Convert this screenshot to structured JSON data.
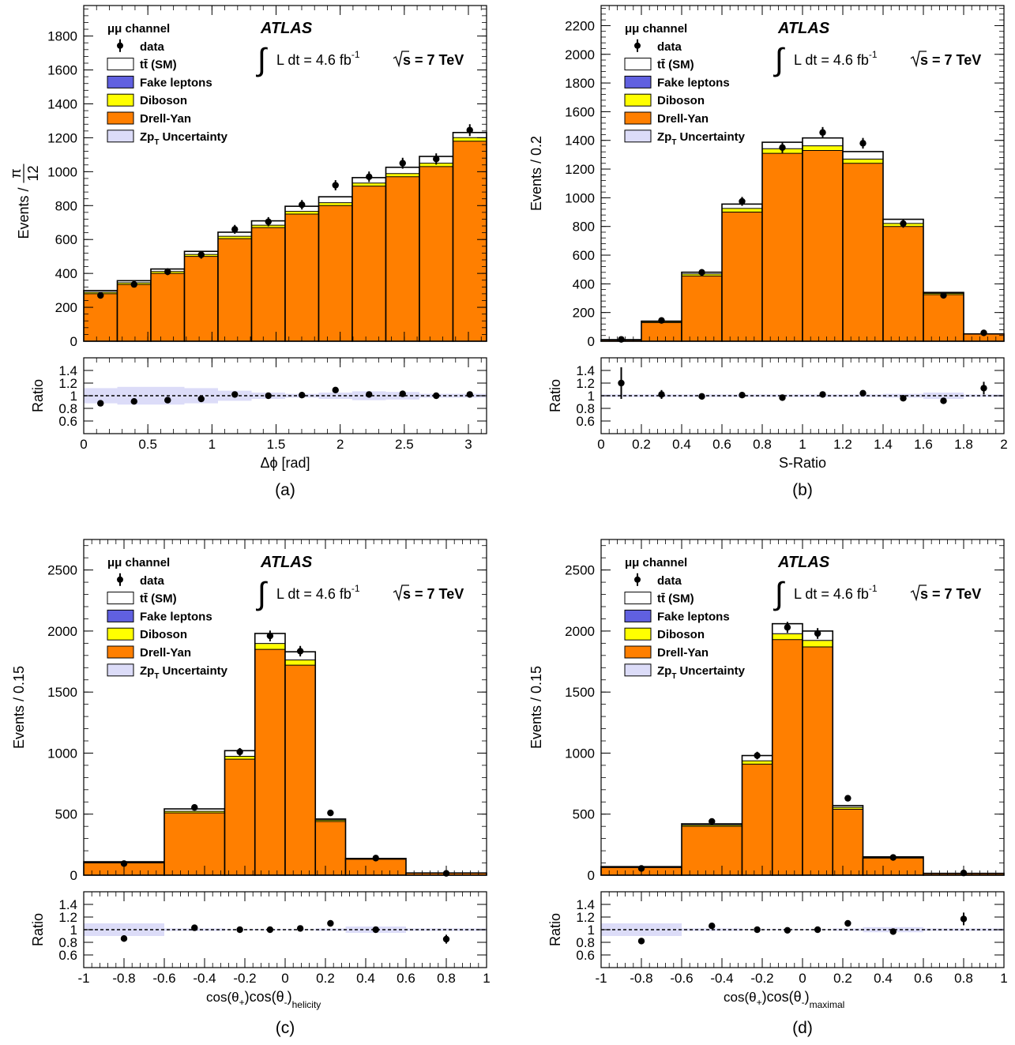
{
  "figure": {
    "experiment": "ATLAS",
    "luminosity": "L dt = 4.6 fb",
    "lumi_exponent": "-1",
    "energy": "s = 7 TeV",
    "ratio_ylabel": "Ratio",
    "legend": [
      {
        "label": "μμ channel",
        "key": "none"
      },
      {
        "label": "data",
        "key": "data"
      },
      {
        "label": "tt̄ (SM)",
        "key": "box",
        "color": "#ffffff"
      },
      {
        "label": "Fake leptons",
        "key": "box",
        "color": "#6060e0"
      },
      {
        "label": "Diboson",
        "key": "box",
        "color": "#ffff00"
      },
      {
        "label": "Drell-Yan",
        "key": "box",
        "color": "#ff7f00"
      },
      {
        "label": "Zp",
        "sub": "T",
        "label_tail": "Uncertainty",
        "key": "box",
        "color": "#dcdcf8"
      }
    ],
    "colors": {
      "dy": "#ff7f00",
      "diboson": "#ffff00",
      "fake": "#6060e0",
      "ttbar": "#ffffff",
      "uncertainty": "#dcdcf8"
    }
  },
  "chart_data": [
    {
      "type": "bar",
      "caption": "(a)",
      "ylabel": "Events / ",
      "ylabel_frac": [
        "π",
        "12"
      ],
      "xlabel": "Δϕ [rad]",
      "xlim": [
        0,
        3.1416
      ],
      "ylim": [
        0,
        1980
      ],
      "yticks": [
        0,
        200,
        400,
        600,
        800,
        1000,
        1200,
        1400,
        1600,
        1800
      ],
      "xticks": [
        0,
        0.5,
        1,
        1.5,
        2,
        2.5,
        3
      ],
      "xtick_labels": [
        "0",
        "0.5",
        "1",
        "1.5",
        "2",
        "2.5",
        "3"
      ],
      "ratio_ylim": [
        0.4,
        1.6
      ],
      "ratio_yticks": [
        0.6,
        0.8,
        1,
        1.2,
        1.4
      ],
      "ratio_ytick_labels": [
        "0.6",
        "0.8",
        "1",
        "1.2",
        "1.4"
      ],
      "bin_edges": [
        0,
        0.2618,
        0.5236,
        0.7854,
        1.0472,
        1.309,
        1.5708,
        1.8326,
        2.0944,
        2.3562,
        2.618,
        2.8798,
        3.1416
      ],
      "drell_yan": [
        280,
        335,
        400,
        500,
        605,
        670,
        750,
        800,
        915,
        970,
        1030,
        1180
      ],
      "diboson": [
        8,
        9,
        10,
        11,
        13,
        13,
        15,
        16,
        17,
        18,
        19,
        20
      ],
      "fake": [
        1,
        1,
        1,
        1,
        1,
        1,
        1,
        1,
        1,
        1,
        1,
        1
      ],
      "ttbar": [
        10,
        12,
        15,
        18,
        24,
        26,
        30,
        35,
        32,
        37,
        40,
        30
      ],
      "total": [
        299,
        357,
        426,
        530,
        643,
        710,
        796,
        852,
        965,
        1026,
        1090,
        1231
      ],
      "data": [
        270,
        335,
        410,
        510,
        660,
        705,
        805,
        920,
        970,
        1050,
        1075,
        1245
      ],
      "data_err": [
        16,
        18,
        20,
        23,
        26,
        27,
        28,
        30,
        31,
        32,
        33,
        35
      ],
      "ratio": [
        0.88,
        0.91,
        0.93,
        0.95,
        1.02,
        1.0,
        1.01,
        1.09,
        1.02,
        1.03,
        1.0,
        1.02
      ],
      "ratio_err": [
        0.02,
        0.02,
        0.02,
        0.02,
        0.02,
        0.02,
        0.02,
        0.02,
        0.02,
        0.02,
        0.02,
        0.02
      ],
      "unc_band": [
        0.12,
        0.14,
        0.14,
        0.12,
        0.08,
        0.05,
        0.03,
        0.05,
        0.07,
        0.06,
        0.03,
        0.03
      ]
    },
    {
      "type": "bar",
      "caption": "(b)",
      "ylabel": "Events / 0.2",
      "xlabel": "S-Ratio",
      "xlim": [
        0,
        2
      ],
      "ylim": [
        0,
        2340
      ],
      "yticks": [
        0,
        200,
        400,
        600,
        800,
        1000,
        1200,
        1400,
        1600,
        1800,
        2000,
        2200
      ],
      "xticks": [
        0,
        0.2,
        0.4,
        0.6,
        0.8,
        1,
        1.2,
        1.4,
        1.6,
        1.8,
        2
      ],
      "xtick_labels": [
        "0",
        "0.2",
        "0.4",
        "0.6",
        "0.8",
        "1",
        "1.2",
        "1.4",
        "1.6",
        "1.8",
        "2"
      ],
      "ratio_ylim": [
        0.4,
        1.6
      ],
      "ratio_yticks": [
        0.6,
        0.8,
        1,
        1.2,
        1.4
      ],
      "ratio_ytick_labels": [
        "0.6",
        "0.8",
        "1",
        "1.2",
        "1.4"
      ],
      "bin_edges": [
        0,
        0.2,
        0.4,
        0.6,
        0.8,
        1.0,
        1.2,
        1.4,
        1.6,
        1.8,
        2.0
      ],
      "drell_yan": [
        8,
        130,
        455,
        900,
        1310,
        1330,
        1240,
        800,
        325,
        50
      ],
      "diboson": [
        1,
        5,
        13,
        25,
        30,
        30,
        28,
        20,
        8,
        1
      ],
      "fake": [
        0,
        1,
        1,
        1,
        2,
        2,
        2,
        1,
        1,
        0
      ],
      "ttbar": [
        2,
        4,
        12,
        30,
        45,
        55,
        52,
        29,
        6,
        0
      ],
      "total": [
        11,
        140,
        481,
        956,
        1387,
        1417,
        1322,
        850,
        340,
        51
      ],
      "data": [
        13,
        145,
        480,
        975,
        1350,
        1455,
        1380,
        820,
        320,
        58
      ],
      "data_err": [
        4,
        12,
        22,
        31,
        37,
        38,
        37,
        29,
        18,
        8
      ],
      "ratio": [
        1.2,
        1.02,
        0.99,
        1.01,
        0.97,
        1.02,
        1.04,
        0.96,
        0.92,
        1.12
      ],
      "ratio_err": [
        0.25,
        0.07,
        0.02,
        0.02,
        0.02,
        0.02,
        0.02,
        0.02,
        0.03,
        0.1
      ],
      "unc_band": [
        0.02,
        0.02,
        0.02,
        0.02,
        0.02,
        0.02,
        0.02,
        0.03,
        0.05,
        0.02
      ]
    },
    {
      "type": "bar",
      "caption": "(c)",
      "ylabel": "Events / 0.15",
      "xlabel": "cos(θ",
      "xlabel_parts": [
        "cos(θ",
        "+",
        ")cos(θ",
        "-",
        ")",
        "helicity"
      ],
      "xlim": [
        -1,
        1
      ],
      "ylim": [
        0,
        2750
      ],
      "yticks": [
        0,
        500,
        1000,
        1500,
        2000,
        2500
      ],
      "xticks": [
        -1,
        -0.8,
        -0.6,
        -0.4,
        -0.2,
        0,
        0.2,
        0.4,
        0.6,
        0.8,
        1
      ],
      "xtick_labels": [
        "-1",
        "-0.8",
        "-0.6",
        "-0.4",
        "-0.2",
        "0",
        "0.2",
        "0.4",
        "0.6",
        "0.8",
        "1"
      ],
      "ratio_ylim": [
        0.4,
        1.6
      ],
      "ratio_yticks": [
        0.6,
        0.8,
        1,
        1.2,
        1.4
      ],
      "ratio_ytick_labels": [
        "0.6",
        "0.8",
        "1",
        "1.2",
        "1.4"
      ],
      "bin_edges": [
        -1,
        -0.6,
        -0.3,
        -0.15,
        0,
        0.15,
        0.3,
        0.6,
        1
      ],
      "drell_yan": [
        100,
        510,
        950,
        1850,
        1720,
        440,
        130,
        16
      ],
      "diboson": [
        3,
        12,
        22,
        45,
        40,
        10,
        4,
        1
      ],
      "fake": [
        0,
        1,
        2,
        3,
        3,
        1,
        0,
        0
      ],
      "ttbar": [
        7,
        20,
        46,
        82,
        67,
        9,
        3,
        1
      ],
      "total": [
        110,
        543,
        1020,
        1980,
        1830,
        460,
        137,
        18
      ],
      "data": [
        95,
        555,
        1010,
        1960,
        1835,
        510,
        140,
        15
      ],
      "data_err": [
        10,
        24,
        32,
        44,
        43,
        23,
        12,
        4
      ],
      "ratio": [
        0.86,
        1.03,
        1.0,
        1.0,
        1.02,
        1.1,
        1.0,
        0.85
      ],
      "ratio_err": [
        0.05,
        0.02,
        0.02,
        0.02,
        0.02,
        0.03,
        0.05,
        0.07
      ],
      "unc_band": [
        0.1,
        0.02,
        0.01,
        0.01,
        0.01,
        0.02,
        0.05,
        0.02
      ]
    },
    {
      "type": "bar",
      "caption": "(d)",
      "ylabel": "Events / 0.15",
      "xlabel": "cos(θ",
      "xlabel_parts": [
        "cos(θ",
        "+",
        ")cos(θ",
        "-",
        ")",
        "maximal"
      ],
      "xlim": [
        -1,
        1
      ],
      "ylim": [
        0,
        2750
      ],
      "yticks": [
        0,
        500,
        1000,
        1500,
        2000,
        2500
      ],
      "xticks": [
        -1,
        -0.8,
        -0.6,
        -0.4,
        -0.2,
        0,
        0.2,
        0.4,
        0.6,
        0.8,
        1
      ],
      "xtick_labels": [
        "-1",
        "-0.8",
        "-0.6",
        "-0.4",
        "-0.2",
        "0",
        "0.2",
        "0.4",
        "0.6",
        "0.8",
        "1"
      ],
      "ratio_ylim": [
        0.4,
        1.6
      ],
      "ratio_yticks": [
        0.6,
        0.8,
        1,
        1.2,
        1.4
      ],
      "ratio_ytick_labels": [
        "0.6",
        "0.8",
        "1",
        "1.2",
        "1.4"
      ],
      "bin_edges": [
        -1,
        -0.6,
        -0.3,
        -0.15,
        0,
        0.15,
        0.3,
        0.6,
        1
      ],
      "drell_yan": [
        62,
        400,
        910,
        1930,
        1870,
        540,
        140,
        12
      ],
      "diboson": [
        3,
        10,
        25,
        45,
        50,
        15,
        5,
        1
      ],
      "fake": [
        0,
        1,
        2,
        3,
        3,
        1,
        0,
        0
      ],
      "ttbar": [
        5,
        10,
        43,
        82,
        77,
        14,
        5,
        2
      ],
      "total": [
        70,
        421,
        980,
        2060,
        2000,
        570,
        150,
        15
      ],
      "data": [
        55,
        440,
        980,
        2030,
        1980,
        630,
        145,
        18
      ],
      "data_err": [
        8,
        21,
        31,
        45,
        44,
        25,
        12,
        4
      ],
      "ratio": [
        0.82,
        1.06,
        1.0,
        0.99,
        1.0,
        1.1,
        0.97,
        1.17
      ],
      "ratio_err": [
        0.05,
        0.02,
        0.02,
        0.02,
        0.02,
        0.03,
        0.04,
        0.1
      ],
      "unc_band": [
        0.1,
        0.02,
        0.01,
        0.01,
        0.01,
        0.02,
        0.04,
        0.02
      ]
    }
  ]
}
